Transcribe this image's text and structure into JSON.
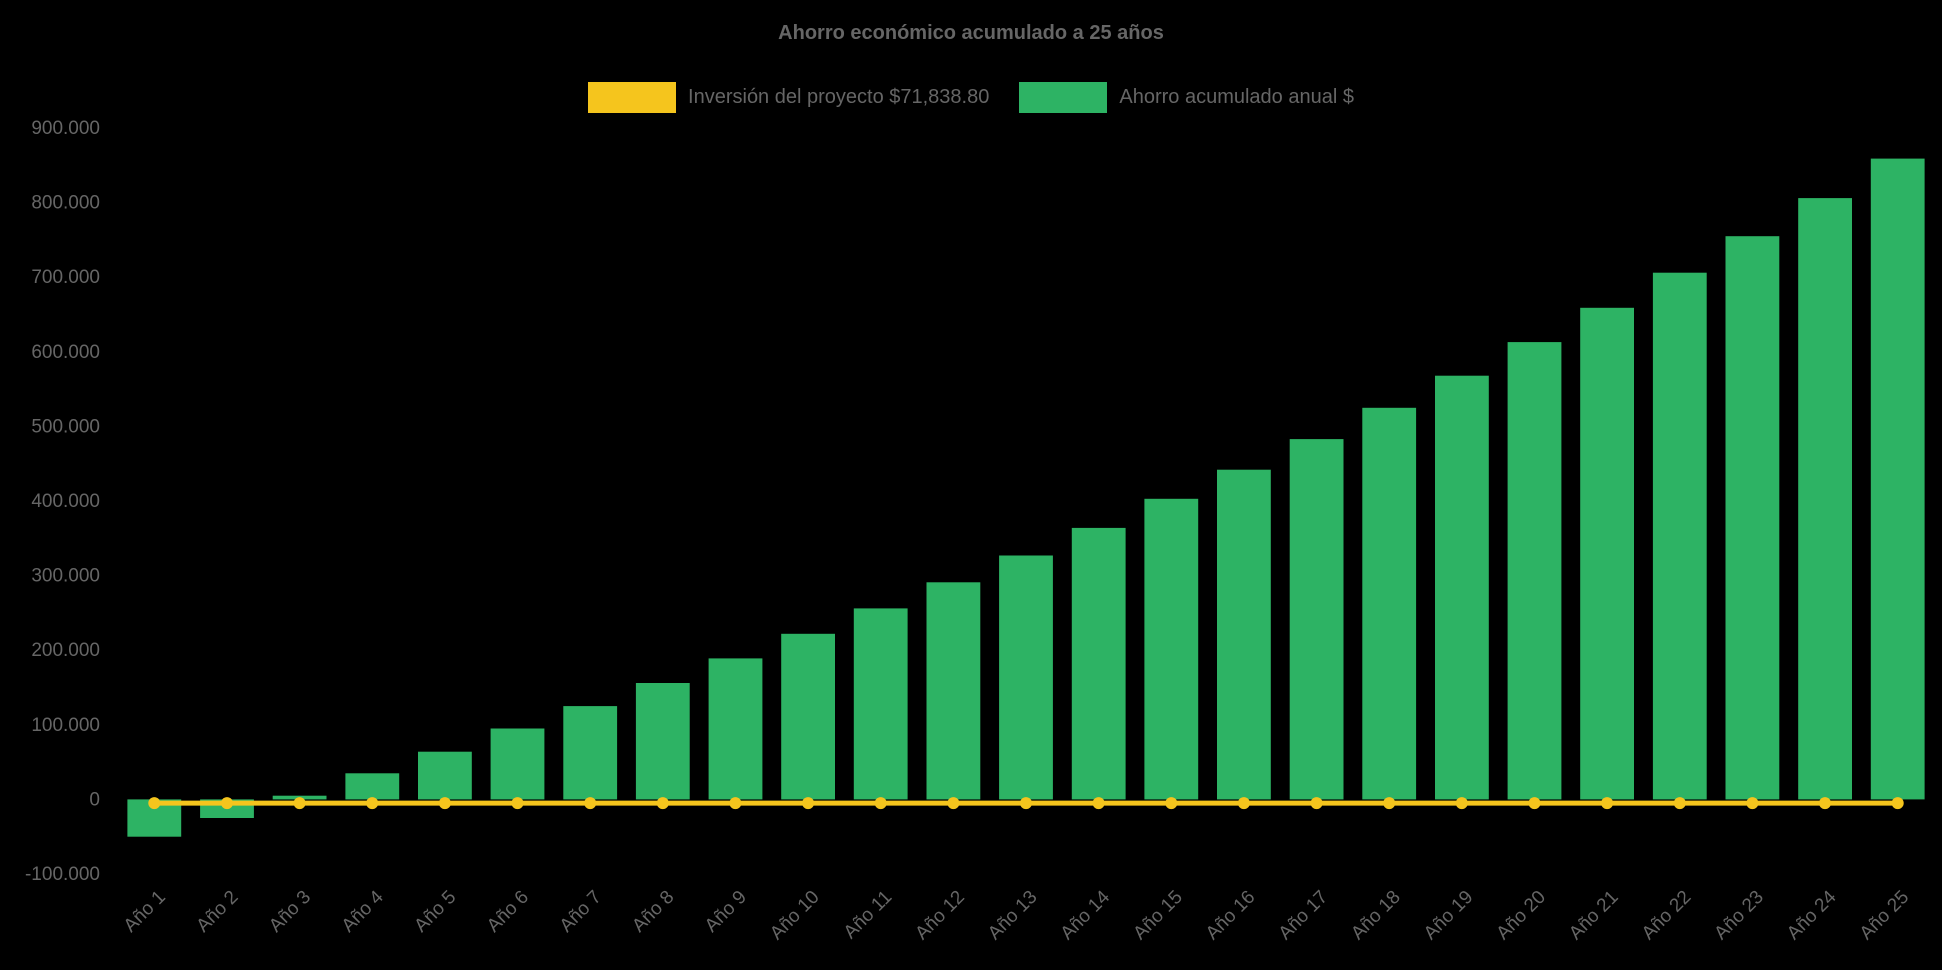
{
  "page": {
    "background": "#000000",
    "text_color": "#666666"
  },
  "chart_data": {
    "type": "bar",
    "title": "Ahorro económico acumulado a 25 años",
    "legend_position": "top",
    "grid": false,
    "ylim": [
      -100000,
      900000
    ],
    "y_ticks": {
      "values": [
        900000,
        800000,
        700000,
        600000,
        500000,
        400000,
        300000,
        200000,
        100000,
        0,
        -100000
      ],
      "labels": [
        "900.000",
        "800.000",
        "700.000",
        "600.000",
        "500.000",
        "400.000",
        "300.000",
        "200.000",
        "100.000",
        "0",
        "-100.000"
      ]
    },
    "categories": [
      "Año 1",
      "Año 2",
      "Año 3",
      "Año 4",
      "Año 5",
      "Año 6",
      "Año 7",
      "Año 8",
      "Año 9",
      "Año 10",
      "Año 11",
      "Año 12",
      "Año 13",
      "Año 14",
      "Año 15",
      "Año 16",
      "Año 17",
      "Año 18",
      "Año 19",
      "Año 20",
      "Año 21",
      "Año 22",
      "Año 23",
      "Año 24",
      "Año 25"
    ],
    "series": [
      {
        "name": "Inversión del proyecto $71,838.80",
        "type": "line",
        "color": "#F5C51D",
        "constant_value": -5000
      },
      {
        "name": "Ahorro acumulado anual $",
        "type": "bar",
        "color": "#2DB364",
        "values": [
          -50000,
          -25000,
          5000,
          35000,
          64000,
          95000,
          125000,
          156000,
          189000,
          222000,
          256000,
          291000,
          327000,
          364000,
          403000,
          442000,
          483000,
          525000,
          568000,
          613000,
          659000,
          706000,
          755000,
          806000,
          859000
        ]
      }
    ]
  }
}
